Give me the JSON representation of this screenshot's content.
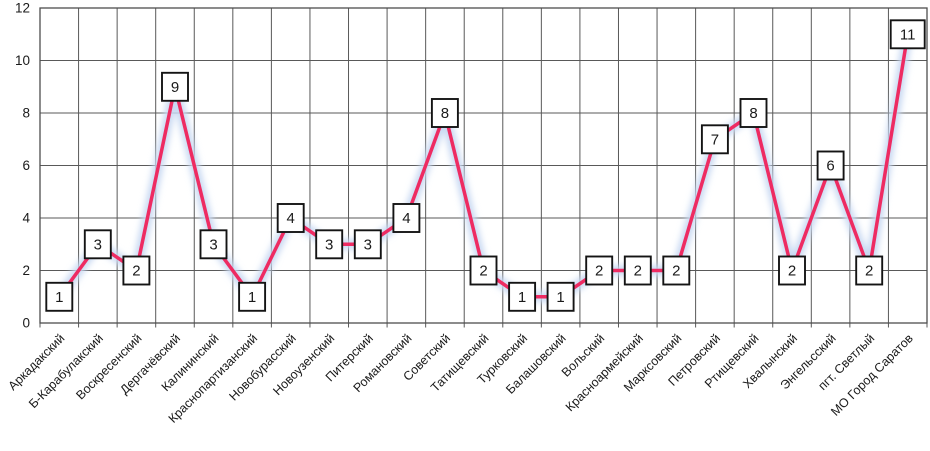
{
  "chart_data": {
    "type": "line",
    "title": "",
    "xlabel": "",
    "ylabel": "",
    "categories": [
      "Аркадакский",
      "Б-Карабулакский",
      "Воскресенский",
      "Дергачёвский",
      "Калининский",
      "Краснопартизанский",
      "Новобурасский",
      "Новоузенский",
      "Питерский",
      "Романовский",
      "Советский",
      "Татищевский",
      "Турковский",
      "Балашовский",
      "Вольский",
      "Красноармейский",
      "Марксовский",
      "Петровский",
      "Ртищевский",
      "Хвалынский",
      "Энгельсский",
      "пгт. Светлый",
      "МО Город Саратов"
    ],
    "values": [
      1,
      3,
      2,
      9,
      3,
      1,
      4,
      3,
      3,
      4,
      8,
      2,
      1,
      1,
      2,
      2,
      2,
      7,
      8,
      2,
      6,
      2,
      11
    ],
    "ylim": [
      0,
      12
    ],
    "ytick_step": 2,
    "yticks": [
      "0",
      "2",
      "4",
      "6",
      "8",
      "10",
      "12"
    ],
    "grid": true,
    "legend": false,
    "data_labels": true,
    "colors": {
      "line": "#EE2B62",
      "glow": "#C7D8F2",
      "grid": "#595959",
      "border": "#4D4D4D",
      "label_box_fill": "#FFFFFF",
      "label_box_border": "#141414",
      "text": "#1A1A1A"
    }
  }
}
